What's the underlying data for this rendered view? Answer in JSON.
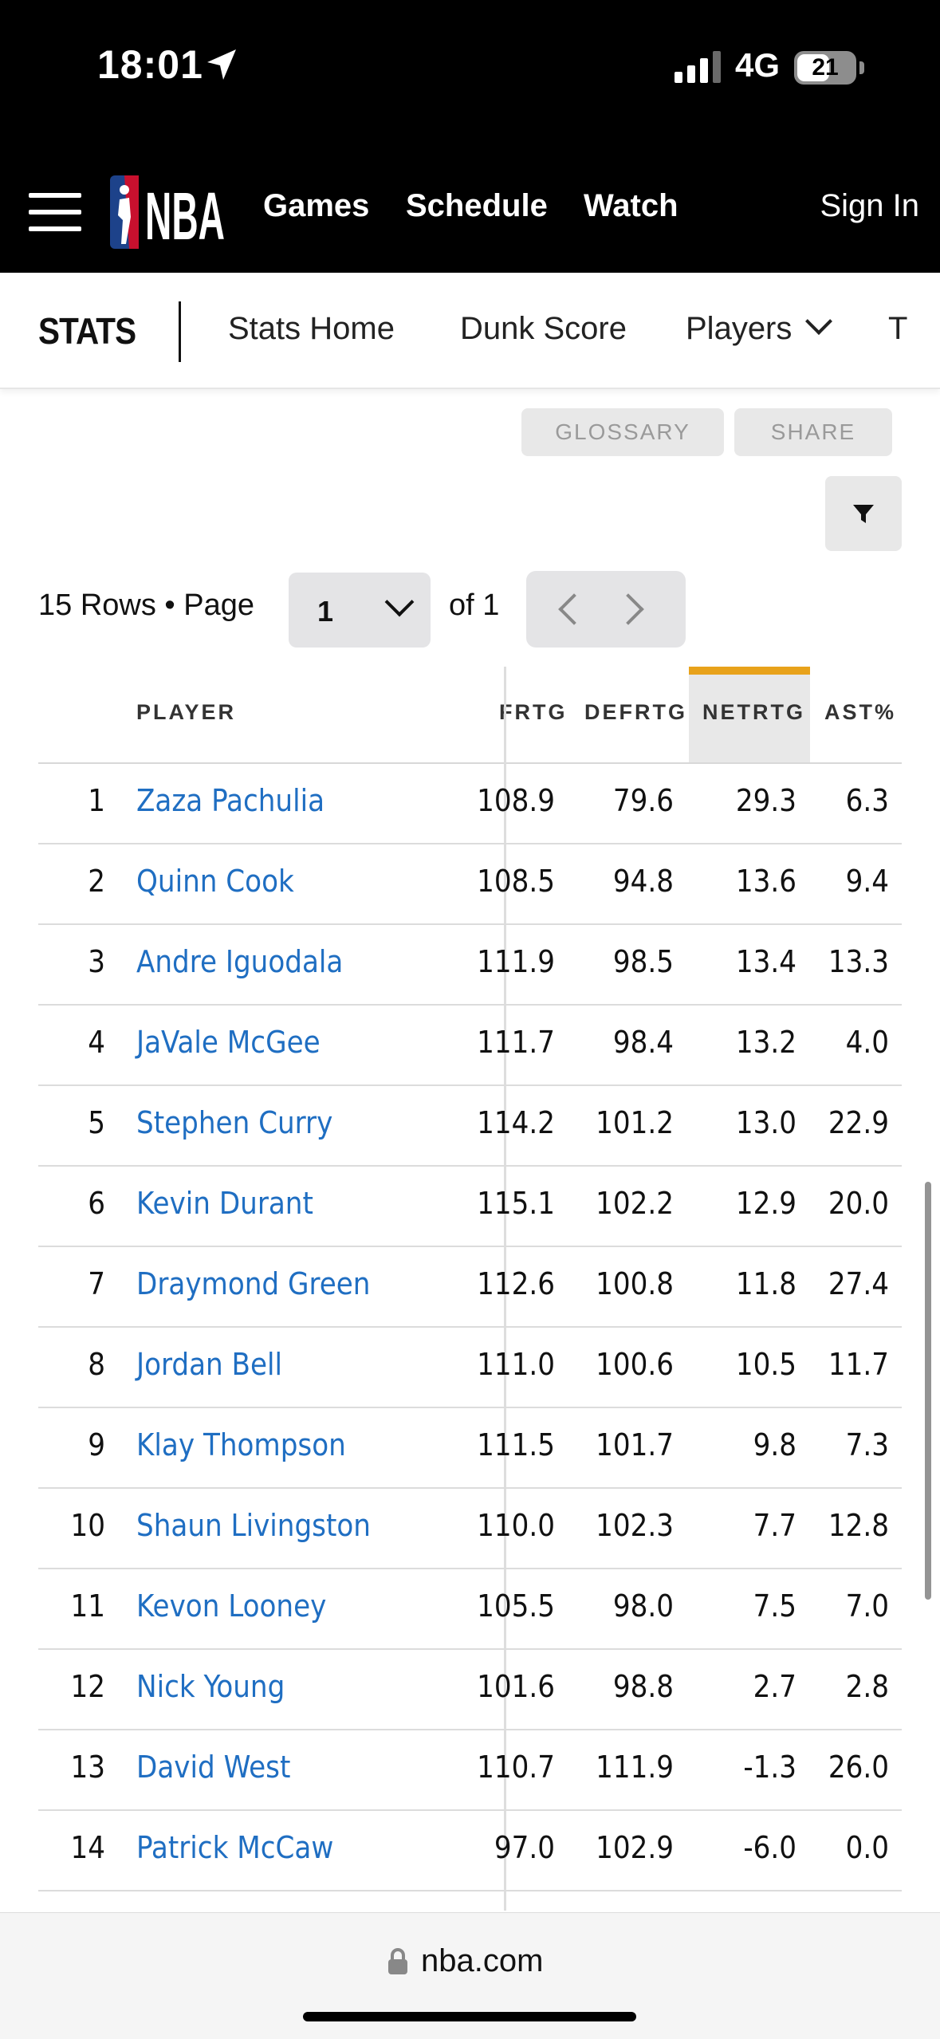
{
  "status_bar": {
    "time": "18:01",
    "network": "4G",
    "battery": "21"
  },
  "header": {
    "logo_text": "NBA",
    "nav": [
      "Games",
      "Schedule",
      "Watch"
    ],
    "sign_in": "Sign In"
  },
  "subnav": {
    "brand": "STATS",
    "items": [
      "Stats Home",
      "Dunk Score",
      "Players",
      "T"
    ]
  },
  "actions": {
    "glossary": "GLOSSARY",
    "share": "SHARE"
  },
  "pagination": {
    "rows_text": "15 Rows • Page",
    "page": "1",
    "of_text": "of 1"
  },
  "table": {
    "headers": {
      "player": "PLAYER",
      "offrtg": "FRTG",
      "defrtg": "DEFRTG",
      "netrtg": "NETRTG",
      "ast": "AST%"
    },
    "sorted_column_color": "#e8a21b",
    "rows": [
      {
        "rank": "1",
        "player": "Zaza Pachulia",
        "offrtg": "108.9",
        "defrtg": "79.6",
        "netrtg": "29.3",
        "ast": "6.3"
      },
      {
        "rank": "2",
        "player": "Quinn Cook",
        "offrtg": "108.5",
        "defrtg": "94.8",
        "netrtg": "13.6",
        "ast": "9.4"
      },
      {
        "rank": "3",
        "player": "Andre Iguodala",
        "offrtg": "111.9",
        "defrtg": "98.5",
        "netrtg": "13.4",
        "ast": "13.3"
      },
      {
        "rank": "4",
        "player": "JaVale McGee",
        "offrtg": "111.7",
        "defrtg": "98.4",
        "netrtg": "13.2",
        "ast": "4.0"
      },
      {
        "rank": "5",
        "player": "Stephen Curry",
        "offrtg": "114.2",
        "defrtg": "101.2",
        "netrtg": "13.0",
        "ast": "22.9"
      },
      {
        "rank": "6",
        "player": "Kevin Durant",
        "offrtg": "115.1",
        "defrtg": "102.2",
        "netrtg": "12.9",
        "ast": "20.0"
      },
      {
        "rank": "7",
        "player": "Draymond Green",
        "offrtg": "112.6",
        "defrtg": "100.8",
        "netrtg": "11.8",
        "ast": "27.4"
      },
      {
        "rank": "8",
        "player": "Jordan Bell",
        "offrtg": "111.0",
        "defrtg": "100.6",
        "netrtg": "10.5",
        "ast": "11.7"
      },
      {
        "rank": "9",
        "player": "Klay Thompson",
        "offrtg": "111.5",
        "defrtg": "101.7",
        "netrtg": "9.8",
        "ast": "7.3"
      },
      {
        "rank": "10",
        "player": "Shaun Livingston",
        "offrtg": "110.0",
        "defrtg": "102.3",
        "netrtg": "7.7",
        "ast": "12.8"
      },
      {
        "rank": "11",
        "player": "Kevon Looney",
        "offrtg": "105.5",
        "defrtg": "98.0",
        "netrtg": "7.5",
        "ast": "7.0"
      },
      {
        "rank": "12",
        "player": "Nick Young",
        "offrtg": "101.6",
        "defrtg": "98.8",
        "netrtg": "2.7",
        "ast": "2.8"
      },
      {
        "rank": "13",
        "player": "David West",
        "offrtg": "110.7",
        "defrtg": "111.9",
        "netrtg": "-1.3",
        "ast": "26.0"
      },
      {
        "rank": "14",
        "player": "Patrick McCaw",
        "offrtg": "97.0",
        "defrtg": "102.9",
        "netrtg": "-6.0",
        "ast": "0.0"
      }
    ]
  },
  "browser": {
    "url": "nba.com"
  }
}
